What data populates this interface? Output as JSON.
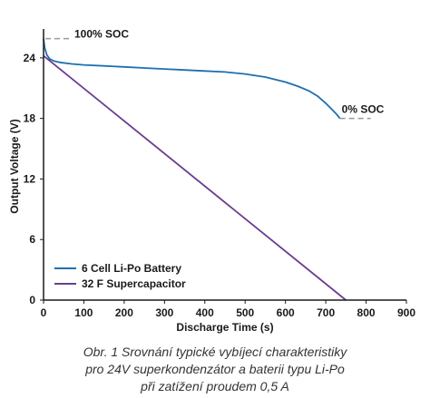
{
  "chart_data": {
    "type": "line",
    "title": "",
    "xlabel": "Discharge Time (s)",
    "ylabel": "Output Voltage (V)",
    "xlim": [
      0,
      900
    ],
    "ylim": [
      0,
      26.5
    ],
    "xticks": [
      0,
      100,
      200,
      300,
      400,
      500,
      600,
      700,
      800,
      900
    ],
    "yticks": [
      0,
      6,
      12,
      18,
      24
    ],
    "grid": false,
    "legend": "bottom-left",
    "series": [
      {
        "name": "6 Cell Li-Po Battery",
        "color": "#1f6faf",
        "x": [
          0,
          3,
          8,
          15,
          25,
          40,
          70,
          100,
          150,
          200,
          250,
          300,
          350,
          400,
          450,
          500,
          550,
          600,
          630,
          660,
          680,
          700,
          715,
          725,
          735
        ],
        "y": [
          25.9,
          25.0,
          24.3,
          23.9,
          23.7,
          23.55,
          23.4,
          23.3,
          23.2,
          23.1,
          23.0,
          22.9,
          22.8,
          22.7,
          22.6,
          22.4,
          22.1,
          21.6,
          21.2,
          20.7,
          20.2,
          19.5,
          18.9,
          18.5,
          18.0
        ]
      },
      {
        "name": "32 F Supercapacitor",
        "color": "#6a3d8f",
        "x": [
          0,
          750
        ],
        "y": [
          24.2,
          0
        ]
      }
    ],
    "annotations": [
      {
        "text": "100% SOC",
        "x": 0,
        "y": 25.9,
        "color": "#999999"
      },
      {
        "text": "0% SOC",
        "x": 735,
        "y": 18.0,
        "color": "#999999"
      }
    ]
  },
  "caption": {
    "lines": [
      "Obr. 1  Srovnání typické vybíjecí charakteristiky",
      "pro 24V superkondenzátor a baterii typu Li-Po",
      "při zatížení proudem 0,5 A"
    ]
  }
}
